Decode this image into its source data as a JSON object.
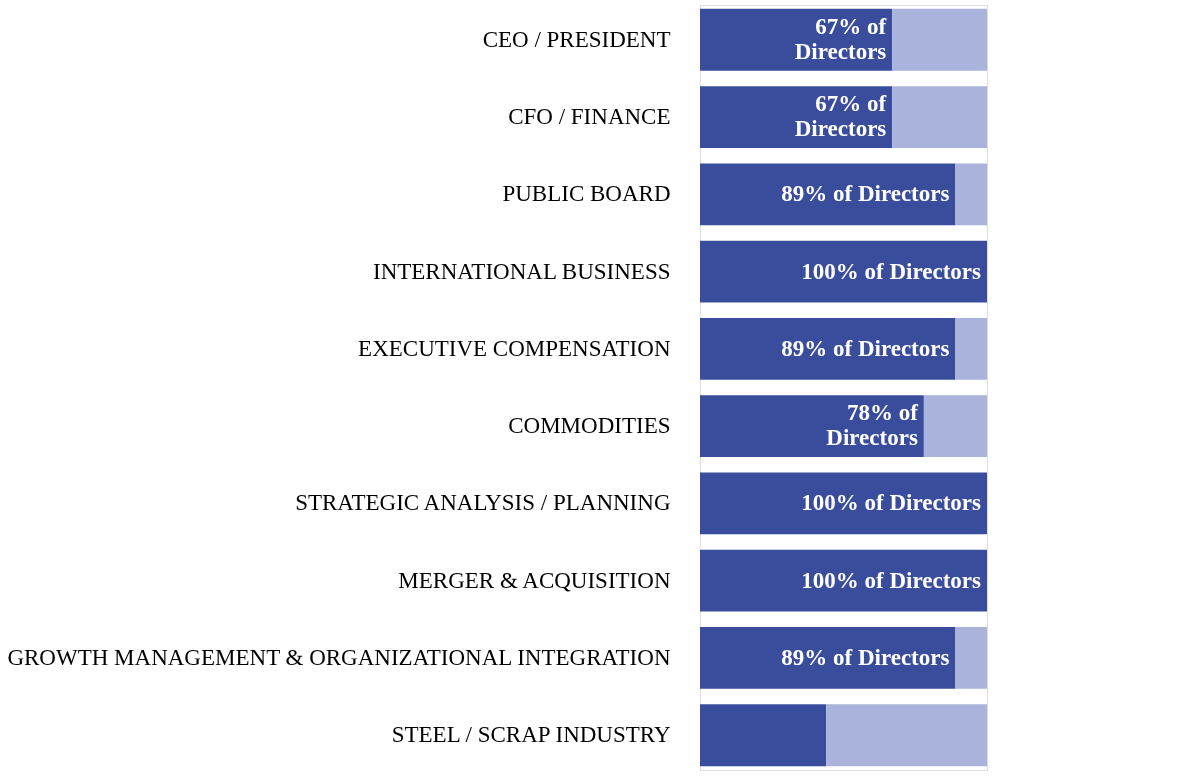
{
  "chart_data": {
    "type": "bar",
    "orientation": "horizontal",
    "stacked": true,
    "xlim": [
      0,
      100
    ],
    "tick_labels": "y",
    "categories": [
      "CEO / PRESIDENT",
      "CFO / FINANCE",
      "PUBLIC BOARD",
      "INTERNATIONAL BUSINESS",
      "EXECUTIVE COMPENSATION",
      "COMMODITIES",
      "STRATEGIC ANALYSIS / PLANNING",
      "MERGER & ACQUISITION",
      "GROWTH MANAGEMENT & ORGANIZATIONAL INTEGRATION",
      "STEEL / SCRAP INDUSTRY"
    ],
    "series": [
      {
        "color": "#3a4d9c",
        "values": [
          67,
          67,
          89,
          100,
          89,
          78,
          100,
          100,
          89,
          44
        ],
        "value_labels": [
          "67% of Directors",
          "67% of Directors",
          "89% of Directors",
          "100% of Directors",
          "89% of Directors",
          "78% of Directors",
          "100% of Directors",
          "100% of Directors",
          "89% of Directors",
          null
        ]
      },
      {
        "color": "#a9b3dc",
        "values": [
          33,
          33,
          11,
          0,
          11,
          22,
          0,
          0,
          11,
          56
        ]
      }
    ]
  }
}
